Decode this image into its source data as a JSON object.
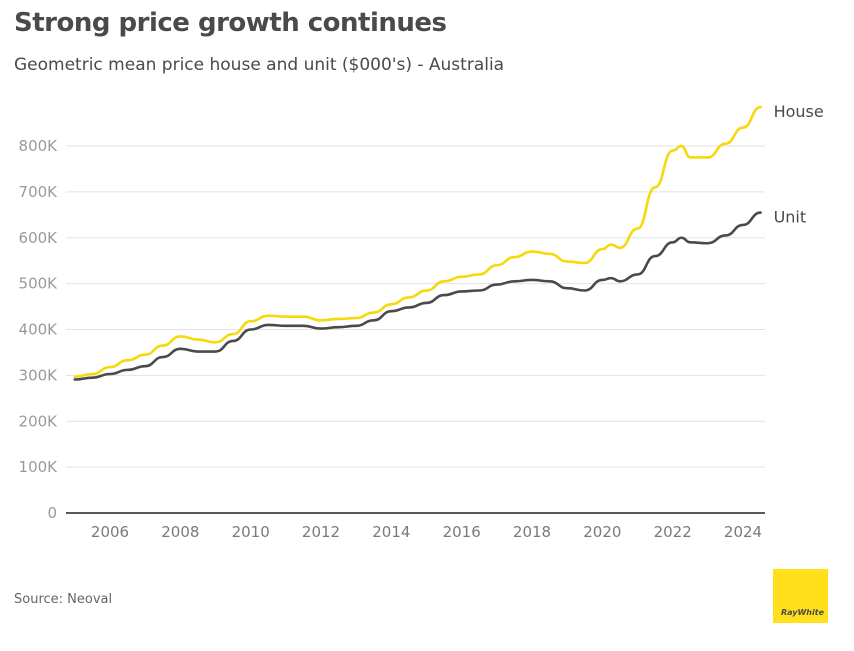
{
  "header": {
    "title": "Strong price growth continues",
    "subtitle": "Geometric mean price house and unit ($000's) - Australia"
  },
  "footer": {
    "source": "Source: Neoval",
    "logo_text": "RayWhite"
  },
  "colors": {
    "house": "#f5d90a",
    "unit": "#4a4a4a",
    "logo_bg": "#ffe01b"
  },
  "chart_data": {
    "type": "line",
    "title": "Strong price growth continues",
    "subtitle": "Geometric mean price house and unit ($000's) - Australia",
    "xlabel": "",
    "ylabel": "",
    "xlim": [
      2005.0,
      2024.5
    ],
    "ylim": [
      0,
      800000
    ],
    "grid": true,
    "legend": "direct-labels-right",
    "x_ticks": [
      2006,
      2008,
      2010,
      2012,
      2014,
      2016,
      2018,
      2020,
      2022,
      2024
    ],
    "x_tick_labels": [
      "2006",
      "2008",
      "2010",
      "2012",
      "2014",
      "2016",
      "2018",
      "2020",
      "2022",
      "2024"
    ],
    "y_ticks": [
      0,
      100000,
      200000,
      300000,
      400000,
      500000,
      600000,
      700000,
      800000
    ],
    "y_tick_labels": [
      "0",
      "100K",
      "200K",
      "300K",
      "400K",
      "500K",
      "600K",
      "700K",
      "800K"
    ],
    "x": [
      2005.0,
      2005.5,
      2006.0,
      2006.5,
      2007.0,
      2007.5,
      2008.0,
      2008.5,
      2009.0,
      2009.5,
      2010.0,
      2010.5,
      2011.0,
      2011.5,
      2012.0,
      2012.5,
      2013.0,
      2013.5,
      2014.0,
      2014.5,
      2015.0,
      2015.5,
      2016.0,
      2016.5,
      2017.0,
      2017.5,
      2018.0,
      2018.5,
      2019.0,
      2019.5,
      2020.0,
      2020.25,
      2020.5,
      2021.0,
      2021.5,
      2022.0,
      2022.25,
      2022.5,
      2023.0,
      2023.5,
      2024.0,
      2024.5
    ],
    "series": [
      {
        "name": "House",
        "color": "#f5d90a",
        "values": [
          297000,
          303000,
          318000,
          333000,
          345000,
          365000,
          385000,
          378000,
          372000,
          390000,
          418000,
          430000,
          428000,
          428000,
          420000,
          423000,
          425000,
          437000,
          455000,
          470000,
          485000,
          505000,
          515000,
          520000,
          540000,
          558000,
          570000,
          565000,
          548000,
          545000,
          575000,
          585000,
          578000,
          620000,
          710000,
          790000,
          800000,
          775000,
          775000,
          805000,
          840000,
          885000
        ]
      },
      {
        "name": "Unit",
        "color": "#4a4a4a",
        "values": [
          291000,
          295000,
          303000,
          312000,
          320000,
          340000,
          358000,
          352000,
          352000,
          375000,
          400000,
          410000,
          408000,
          408000,
          402000,
          405000,
          408000,
          420000,
          440000,
          448000,
          458000,
          475000,
          483000,
          485000,
          498000,
          505000,
          508000,
          505000,
          490000,
          485000,
          508000,
          512000,
          505000,
          520000,
          560000,
          590000,
          600000,
          590000,
          588000,
          605000,
          628000,
          655000
        ]
      }
    ]
  }
}
